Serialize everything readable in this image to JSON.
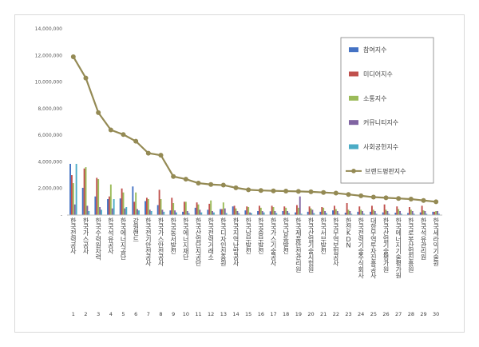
{
  "chart_data": {
    "type": "bar",
    "ylim": [
      0,
      14000000
    ],
    "y_ticks": [
      "-",
      "2,000,000",
      "4,000,000",
      "6,000,000",
      "8,000,000",
      "10,000,000",
      "12,000,000",
      "14,000,000"
    ],
    "y_tick_values": [
      0,
      2000000,
      4000000,
      6000000,
      8000000,
      10000000,
      12000000,
      14000000
    ],
    "grid": false,
    "legend_position": "top-right",
    "ranks": [
      "1",
      "2",
      "3",
      "4",
      "5",
      "6",
      "7",
      "8",
      "9",
      "10",
      "11",
      "12",
      "13",
      "14",
      "15",
      "16",
      "17",
      "18",
      "19",
      "20",
      "21",
      "22",
      "23",
      "24",
      "25",
      "26",
      "27",
      "28",
      "29",
      "30"
    ],
    "categories": [
      "한국전력공사",
      "한국가스공사",
      "한국수력원자력",
      "한국석유공사",
      "한국에너지공단",
      "강원랜드",
      "한국전기안전공사",
      "한국가스안전공사",
      "한국동서발전",
      "한국에너지재단",
      "한국산업단지공단",
      "한국전력거래소",
      "한국디자인진흥원",
      "한국지역난방공사",
      "한국남부발전",
      "한국중부발전",
      "한국가스기술공사",
      "한국남동발전",
      "한국제품안전관리원",
      "한국산업기술시험원",
      "한국서부발전",
      "한국무역보험공사",
      "한전KDN",
      "한국전력기술주식회사",
      "대한무역투자진흥공사",
      "한국산업기술평가원",
      "한국에너지기술평가원",
      "한국로봇산업진흥원",
      "한국석유관리원",
      "한국세라믹기술원"
    ],
    "series": [
      {
        "name": "참여지수",
        "color": "#4472c4",
        "values": [
          3850000,
          2050000,
          1400000,
          1200000,
          1250000,
          2150000,
          1050000,
          750000,
          350000,
          250000,
          550000,
          400000,
          450000,
          650000,
          350000,
          300000,
          280000,
          300000,
          200000,
          250000,
          250000,
          350000,
          180000,
          250000,
          250000,
          200000,
          180000,
          150000,
          200000,
          250000
        ]
      },
      {
        "name": "미디어지수",
        "color": "#c0504d",
        "values": [
          3000000,
          3500000,
          2800000,
          1400000,
          2000000,
          1000000,
          1300000,
          1900000,
          1300000,
          1000000,
          950000,
          850000,
          450000,
          700000,
          650000,
          700000,
          700000,
          650000,
          750000,
          650000,
          600000,
          700000,
          900000,
          650000,
          700000,
          800000,
          650000,
          600000,
          700000,
          250000
        ]
      },
      {
        "name": "소통지수",
        "color": "#9bbb59",
        "values": [
          2400000,
          3600000,
          2700000,
          2300000,
          1700000,
          1700000,
          1200000,
          1200000,
          900000,
          1000000,
          800000,
          1100000,
          950000,
          500000,
          600000,
          550000,
          600000,
          550000,
          550000,
          500000,
          550000,
          450000,
          400000,
          400000,
          400000,
          400000,
          450000,
          400000,
          350000,
          300000
        ]
      },
      {
        "name": "커뮤니티지수",
        "color": "#8064a2",
        "values": [
          800000,
          700000,
          600000,
          500000,
          500000,
          450000,
          400000,
          400000,
          350000,
          300000,
          400000,
          300000,
          500000,
          300000,
          200000,
          300000,
          300000,
          300000,
          1400000,
          400000,
          300000,
          300000,
          300000,
          300000,
          300000,
          300000,
          300000,
          300000,
          300000,
          300000
        ]
      },
      {
        "name": "사회공헌지수",
        "color": "#4bacc6",
        "values": [
          3850000,
          300000,
          400000,
          1200000,
          600000,
          350000,
          300000,
          250000,
          200000,
          150000,
          200000,
          200000,
          150000,
          150000,
          150000,
          200000,
          150000,
          150000,
          100000,
          150000,
          150000,
          100000,
          100000,
          100000,
          100000,
          100000,
          100000,
          100000,
          100000,
          100000
        ]
      }
    ],
    "line": {
      "name": "브랜드평판지수",
      "color": "#948a54",
      "values": [
        11900000,
        10300000,
        7700000,
        6400000,
        6050000,
        5550000,
        4650000,
        4500000,
        2900000,
        2700000,
        2400000,
        2300000,
        2250000,
        2050000,
        1900000,
        1850000,
        1820000,
        1800000,
        1780000,
        1750000,
        1700000,
        1650000,
        1550000,
        1450000,
        1350000,
        1300000,
        1250000,
        1200000,
        1100000,
        1000000
      ]
    }
  }
}
